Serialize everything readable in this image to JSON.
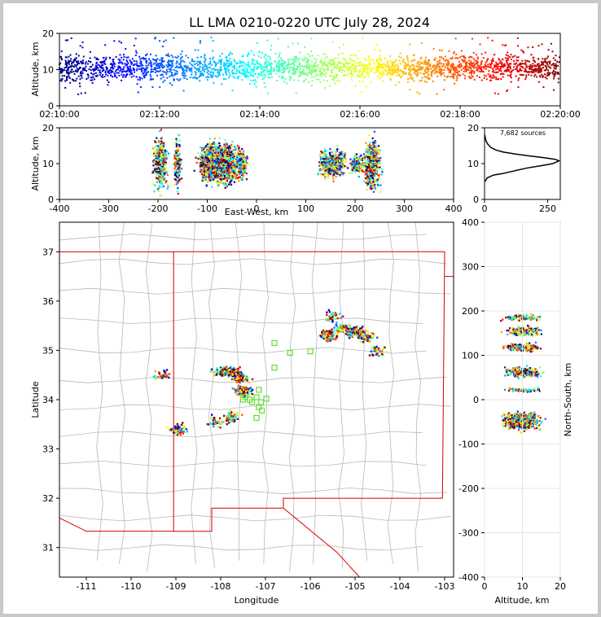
{
  "title": "LL LMA 0210-0220 UTC July 28, 2024",
  "chart_data": [
    {
      "id": "altitude_time",
      "type": "scatter",
      "ylabel": "Altitude, km",
      "xlim": [
        "02:10:00",
        "02:20:00"
      ],
      "ylim": [
        0,
        20
      ],
      "xticks": [
        "02:10:00",
        "02:12:00",
        "02:14:00",
        "02:16:00",
        "02:18:00",
        "02:20:00"
      ],
      "yticks": [
        0,
        10,
        20
      ],
      "colormap": "jet (by time)",
      "note": "dense band of sources 5-15 km across the whole 10-minute window"
    },
    {
      "id": "altitude_eastwest",
      "type": "scatter",
      "xlabel": "East-West, km",
      "ylabel": "Altitude, km",
      "xlim": [
        -400,
        400
      ],
      "ylim": [
        0,
        20
      ],
      "xticks": [
        -400,
        -300,
        -200,
        -100,
        0,
        100,
        200,
        300,
        400
      ],
      "yticks": [
        0,
        10,
        20
      ],
      "clusters_x_km": [
        -195,
        -160,
        -90,
        -60,
        -30,
        155,
        215,
        235
      ]
    },
    {
      "id": "histogram",
      "type": "line",
      "annotation": "7,682 sources",
      "xlim": [
        0,
        300
      ],
      "ylim": [
        0,
        20
      ],
      "xticks": [
        0,
        250
      ],
      "yticks": [
        0,
        10,
        20
      ],
      "profile": [
        [
          2,
          5
        ],
        [
          10,
          6
        ],
        [
          35,
          6.8
        ],
        [
          70,
          7.2
        ],
        [
          120,
          8
        ],
        [
          170,
          8.8
        ],
        [
          230,
          9.5
        ],
        [
          270,
          10
        ],
        [
          295,
          10.8
        ],
        [
          280,
          11.2
        ],
        [
          230,
          11.7
        ],
        [
          170,
          12.2
        ],
        [
          120,
          12.7
        ],
        [
          75,
          13.2
        ],
        [
          45,
          13.8
        ],
        [
          25,
          14.5
        ],
        [
          12,
          15.5
        ],
        [
          5,
          16.5
        ],
        [
          1,
          18
        ]
      ]
    },
    {
      "id": "planview",
      "type": "scatter",
      "xlabel": "Longitude",
      "ylabel": "Latitude",
      "xlim": [
        -111.6,
        -102.8
      ],
      "ylim": [
        30.4,
        37.6
      ],
      "xticks": [
        -111,
        -110,
        -109,
        -108,
        -107,
        -106,
        -105,
        -104,
        -103
      ],
      "yticks": [
        31,
        32,
        33,
        34,
        35,
        36,
        37
      ],
      "stations": [
        [
          -106.8,
          35.15
        ],
        [
          -106.45,
          34.95
        ],
        [
          -106.0,
          34.98
        ],
        [
          -106.8,
          34.65
        ],
        [
          -107.15,
          34.2
        ],
        [
          -107.2,
          34.05
        ],
        [
          -107.35,
          34.0
        ],
        [
          -107.45,
          34.05
        ],
        [
          -107.5,
          34.0
        ],
        [
          -107.3,
          33.95
        ],
        [
          -107.1,
          33.95
        ],
        [
          -106.98,
          34.02
        ],
        [
          -107.15,
          33.85
        ],
        [
          -107.08,
          33.78
        ],
        [
          -107.2,
          33.63
        ]
      ],
      "station_color": "#66dd33",
      "clusters": [
        [
          -109.3,
          34.5
        ],
        [
          -108.95,
          33.4
        ],
        [
          -108.0,
          34.57
        ],
        [
          -107.75,
          34.57
        ],
        [
          -108.1,
          33.55
        ],
        [
          -107.8,
          33.65
        ],
        [
          -107.55,
          34.45
        ],
        [
          -107.5,
          34.18
        ],
        [
          -105.5,
          35.68
        ],
        [
          -105.3,
          35.45
        ],
        [
          -105.6,
          35.3
        ],
        [
          -105.0,
          35.38
        ],
        [
          -104.5,
          35.0
        ],
        [
          -104.75,
          35.28
        ]
      ]
    },
    {
      "id": "altitude_northsouth",
      "type": "scatter",
      "xlabel": "Altitude, km",
      "ylabel": "North-South, km",
      "xlim": [
        0,
        20
      ],
      "ylim": [
        -400,
        400
      ],
      "xticks": [
        0,
        10,
        20
      ],
      "yticks": [
        -400,
        -300,
        -200,
        -100,
        0,
        100,
        200,
        300,
        400
      ],
      "bands_ns_km": [
        185,
        155,
        118,
        62,
        22,
        -42,
        -55
      ]
    }
  ]
}
